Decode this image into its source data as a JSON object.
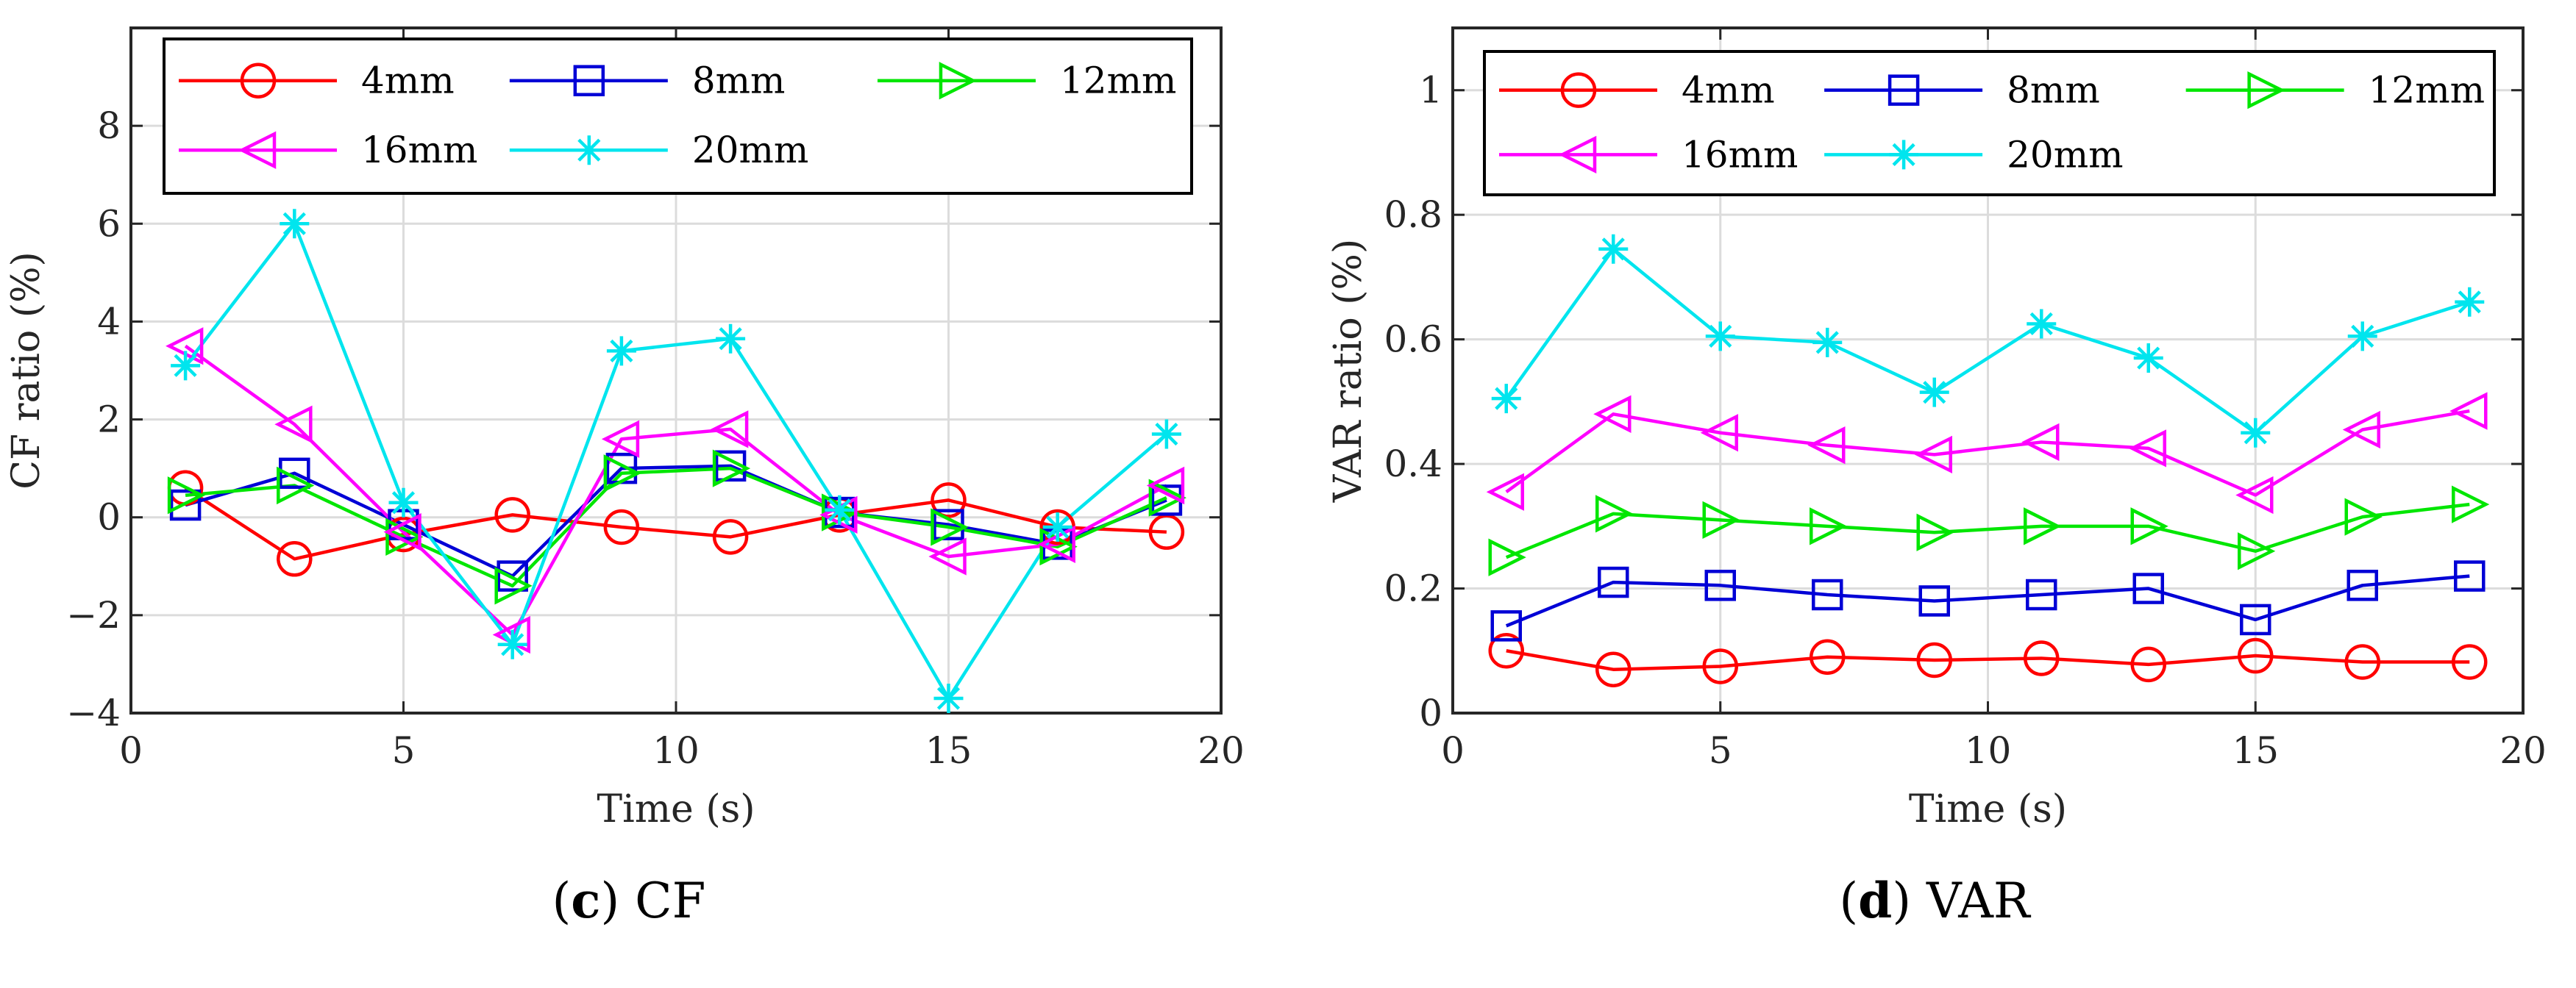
{
  "chart_data": [
    {
      "type": "line",
      "panel_label": "c",
      "caption": "CF",
      "xlabel": "Time (s)",
      "ylabel": "CF ratio (%)",
      "xlim": [
        0,
        20
      ],
      "ylim": [
        -4,
        10
      ],
      "xticks": [
        0,
        5,
        10,
        15,
        20
      ],
      "yticks": [
        -4,
        -2,
        0,
        2,
        4,
        6,
        8
      ],
      "grid": true,
      "legend": "top",
      "x": [
        1,
        3,
        5,
        7,
        9,
        11,
        13,
        15,
        17,
        19
      ],
      "series": [
        {
          "name": "4mm",
          "color": "#ff0000",
          "marker": "circle",
          "values": [
            0.6,
            -0.85,
            -0.35,
            0.05,
            -0.2,
            -0.4,
            0.05,
            0.35,
            -0.2,
            -0.3
          ]
        },
        {
          "name": "8mm",
          "color": "#0000d6",
          "marker": "square",
          "values": [
            0.25,
            0.9,
            -0.15,
            -1.2,
            1.0,
            1.05,
            0.1,
            -0.15,
            -0.55,
            0.35
          ]
        },
        {
          "name": "12mm",
          "color": "#00e600",
          "marker": "triangle-right",
          "values": [
            0.45,
            0.65,
            -0.4,
            -1.4,
            0.9,
            1.0,
            0.1,
            -0.2,
            -0.6,
            0.4
          ]
        },
        {
          "name": "16mm",
          "color": "#ff00ff",
          "marker": "triangle-left",
          "values": [
            3.5,
            1.9,
            -0.3,
            -2.4,
            1.6,
            1.8,
            0.05,
            -0.8,
            -0.55,
            0.65
          ]
        },
        {
          "name": "20mm",
          "color": "#00e5ee",
          "marker": "asterisk",
          "values": [
            3.1,
            6.0,
            0.3,
            -2.6,
            3.4,
            3.65,
            0.15,
            -3.7,
            -0.2,
            1.7
          ]
        }
      ]
    },
    {
      "type": "line",
      "panel_label": "d",
      "caption": "VAR",
      "xlabel": "Time (s)",
      "ylabel": "VAR ratio (%)",
      "xlim": [
        0,
        20
      ],
      "ylim": [
        0,
        1.1
      ],
      "xticks": [
        0,
        5,
        10,
        15,
        20
      ],
      "yticks": [
        0,
        0.2,
        0.4,
        0.6,
        0.8,
        1
      ],
      "grid": true,
      "legend": "top",
      "x": [
        1,
        3,
        5,
        7,
        9,
        11,
        13,
        15,
        17,
        19
      ],
      "series": [
        {
          "name": "4mm",
          "color": "#ff0000",
          "marker": "circle",
          "values": [
            0.1,
            0.07,
            0.075,
            0.09,
            0.085,
            0.088,
            0.078,
            0.092,
            0.082,
            0.082
          ]
        },
        {
          "name": "8mm",
          "color": "#0000d6",
          "marker": "square",
          "values": [
            0.14,
            0.21,
            0.205,
            0.19,
            0.18,
            0.19,
            0.2,
            0.15,
            0.205,
            0.22
          ]
        },
        {
          "name": "12mm",
          "color": "#00e600",
          "marker": "triangle-right",
          "values": [
            0.25,
            0.32,
            0.31,
            0.3,
            0.29,
            0.3,
            0.3,
            0.26,
            0.315,
            0.335
          ]
        },
        {
          "name": "16mm",
          "color": "#ff00ff",
          "marker": "triangle-left",
          "values": [
            0.355,
            0.48,
            0.45,
            0.43,
            0.415,
            0.435,
            0.425,
            0.35,
            0.455,
            0.485
          ]
        },
        {
          "name": "20mm",
          "color": "#00e5ee",
          "marker": "asterisk",
          "values": [
            0.505,
            0.745,
            0.605,
            0.595,
            0.515,
            0.625,
            0.57,
            0.45,
            0.605,
            0.66
          ]
        }
      ]
    }
  ]
}
